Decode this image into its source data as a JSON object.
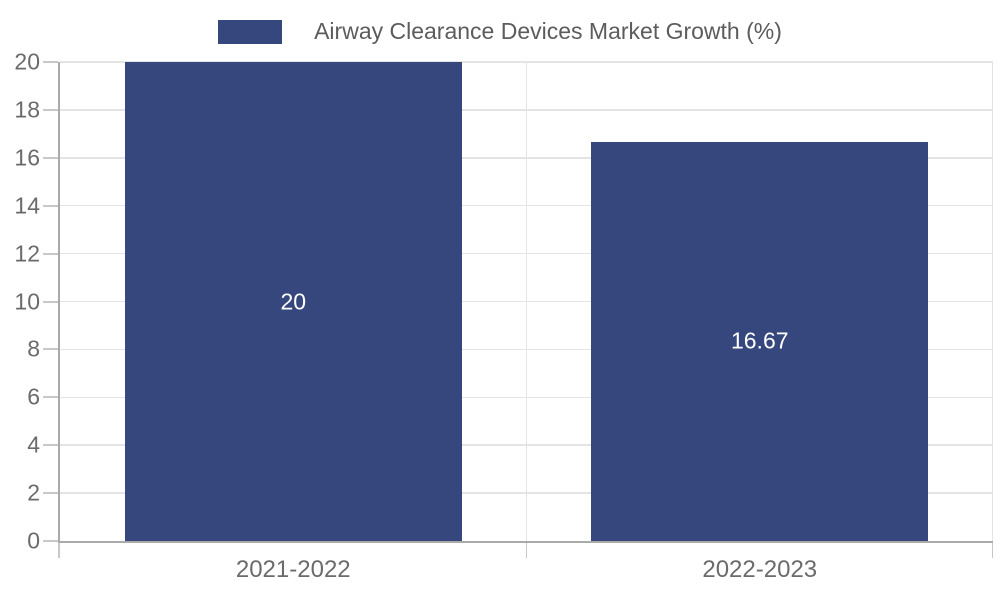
{
  "chart_data": {
    "type": "bar",
    "title": "Airway Clearance Devices Market Growth (%)",
    "legend_label": "Airway Clearance Devices Market Growth (%)",
    "legend_position": "top-center",
    "categories": [
      "2021-2022",
      "2022-2023"
    ],
    "values": [
      20,
      16.67
    ],
    "value_labels": [
      "20",
      "16.67"
    ],
    "xlabel": "",
    "ylabel": "",
    "ylim": [
      0,
      20
    ],
    "yticks": [
      0,
      2,
      4,
      6,
      8,
      10,
      12,
      14,
      16,
      18,
      20
    ],
    "grid": true,
    "colors": {
      "bar": "#36477d",
      "bar_label": "#ffffff",
      "axis_text": "#6b6b6b",
      "legend_text": "#5c5c5c",
      "grid_line": "#e4e4e4",
      "axis_line": "#aaaaaa",
      "tick_line": "#c8c8c8",
      "background": "#ffffff"
    }
  }
}
